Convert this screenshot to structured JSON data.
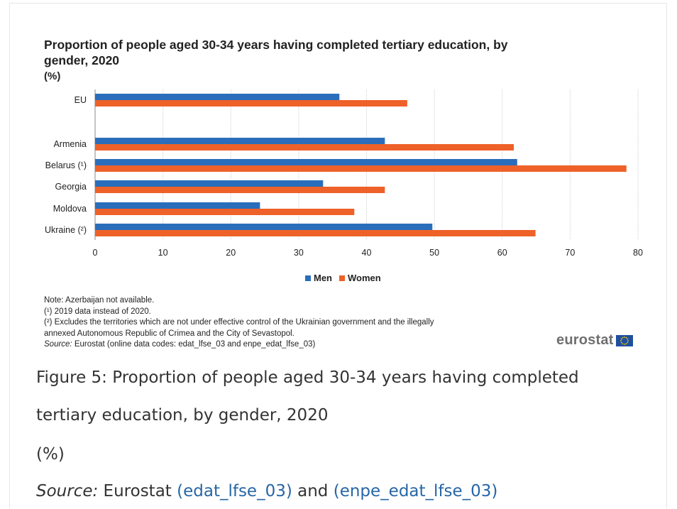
{
  "chart_data": {
    "type": "bar",
    "orientation": "horizontal",
    "title": "Proportion of people aged 30-34 years  having completed tertiary education, by gender, 2020",
    "unit": "(%)",
    "categories": [
      "EU",
      "Armenia",
      "Belarus (¹)",
      "Georgia",
      "Moldova",
      "Ukraine (²)"
    ],
    "series": [
      {
        "name": "Men",
        "color": "#2a6ebb",
        "values": [
          36.0,
          42.7,
          62.2,
          33.6,
          24.3,
          49.7
        ]
      },
      {
        "name": "Women",
        "color": "#ee6128",
        "values": [
          46.0,
          61.7,
          78.3,
          42.7,
          38.2,
          64.9
        ]
      }
    ],
    "xlim": [
      0,
      80
    ],
    "xticks": [
      0,
      10,
      20,
      30,
      40,
      50,
      60,
      70,
      80
    ],
    "grid": true,
    "legend_position": "bottom"
  },
  "notes": {
    "note1": "Note: Azerbaijan not available.",
    "note2": "(¹) 2019 data instead of 2020.",
    "note3": "(²) Excludes the territories which are not under effective control of the Ukrainian government and the illegally",
    "note4": "annexed Autonomous Republic of Crimea and the City of Sevastopol.",
    "source_label": "Source:",
    "source_text": " Eurostat (online data codes: edat_lfse_03 and enpe_edat_lfse_03)"
  },
  "logo": {
    "text": "eurostat",
    "icon": "eu-flag-icon"
  },
  "caption": {
    "line1": "Figure 5: Proportion of people aged 30-34 years having completed",
    "line2": "tertiary education, by gender, 2020",
    "line3": "(%)",
    "source_label": "Source:",
    "source_text": " Eurostat ",
    "link1": "(edat_lfse_03)",
    "and": " and ",
    "link2": "(enpe_edat_lfse_03)"
  }
}
